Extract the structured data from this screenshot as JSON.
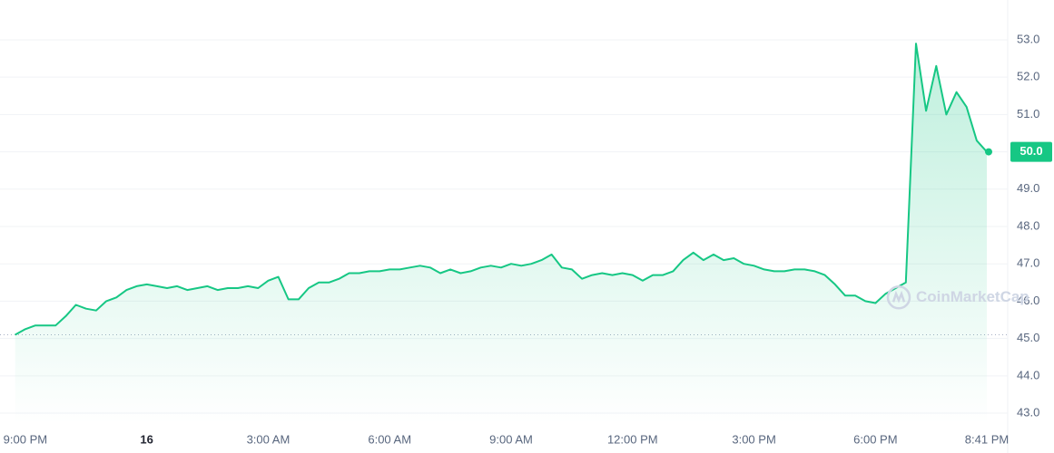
{
  "chart_data": {
    "type": "line",
    "color": "#16c784",
    "grid": true,
    "watermark": "CoinMarketCap",
    "last_value_label": "50.0",
    "values": [
      45.1,
      45.25,
      45.35,
      45.35,
      45.35,
      45.6,
      45.9,
      45.8,
      45.75,
      46.0,
      46.1,
      46.3,
      46.4,
      46.45,
      46.4,
      46.35,
      46.4,
      46.3,
      46.35,
      46.4,
      46.3,
      46.35,
      46.35,
      46.4,
      46.35,
      46.55,
      46.65,
      46.05,
      46.05,
      46.35,
      46.5,
      46.5,
      46.6,
      46.75,
      46.75,
      46.8,
      46.8,
      46.85,
      46.85,
      46.9,
      46.95,
      46.9,
      46.75,
      46.85,
      46.75,
      46.8,
      46.9,
      46.95,
      46.9,
      47.0,
      46.95,
      47.0,
      47.1,
      47.25,
      46.9,
      46.85,
      46.6,
      46.7,
      46.75,
      46.7,
      46.75,
      46.7,
      46.55,
      46.7,
      46.7,
      46.8,
      47.1,
      47.3,
      47.1,
      47.25,
      47.1,
      47.15,
      47.0,
      46.95,
      46.85,
      46.8,
      46.8,
      46.85,
      46.85,
      46.8,
      46.7,
      46.45,
      46.15,
      46.15,
      46.0,
      45.95,
      46.2,
      46.35,
      46.5,
      52.9,
      51.1,
      52.3,
      51.0,
      51.6,
      51.2,
      50.3,
      50.0
    ],
    "xlim": [
      -1.5,
      96
    ],
    "xticks": [
      {
        "value": 1,
        "label": "9:00 PM"
      },
      {
        "value": 13,
        "label": "16"
      },
      {
        "value": 25,
        "label": "3:00 AM"
      },
      {
        "value": 37,
        "label": "6:00 AM"
      },
      {
        "value": 49,
        "label": "9:00 AM"
      },
      {
        "value": 61,
        "label": "12:00 PM"
      },
      {
        "value": 73,
        "label": "3:00 PM"
      },
      {
        "value": 85,
        "label": "6:00 PM"
      },
      {
        "value": 96,
        "label": "8:41 PM"
      }
    ],
    "ylim": [
      42.7,
      53.3
    ],
    "yticks": [
      {
        "value": 43,
        "label": "43.0"
      },
      {
        "value": 44,
        "label": "44.0"
      },
      {
        "value": 45,
        "label": "45.0"
      },
      {
        "value": 46,
        "label": "46.0"
      },
      {
        "value": 47,
        "label": "47.0"
      },
      {
        "value": 48,
        "label": "48.0"
      },
      {
        "value": 49,
        "label": "49.0"
      },
      {
        "value": 50,
        "label": "50.0"
      },
      {
        "value": 51,
        "label": "51.0"
      },
      {
        "value": 52,
        "label": "52.0"
      },
      {
        "value": 53,
        "label": "53.0"
      }
    ]
  }
}
